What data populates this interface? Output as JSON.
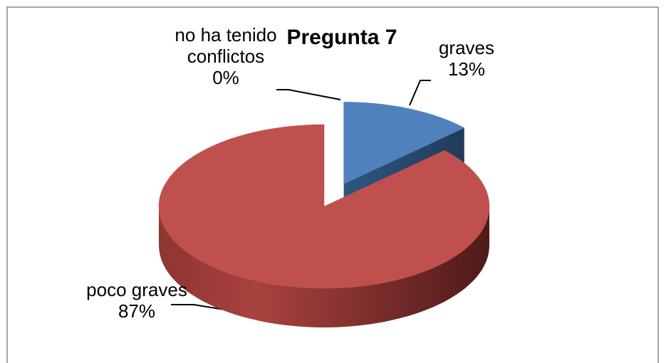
{
  "chart_data": {
    "type": "pie",
    "title": "Pregunta 7",
    "categories": [
      "graves",
      "poco graves",
      "no ha tenido conflictos"
    ],
    "values": [
      13,
      87,
      0
    ],
    "value_labels": [
      "13%",
      "87%",
      "0%"
    ],
    "colors": [
      "#4f81bd",
      "#c0504d",
      "#9bbb59"
    ],
    "exploded": [
      0
    ]
  }
}
